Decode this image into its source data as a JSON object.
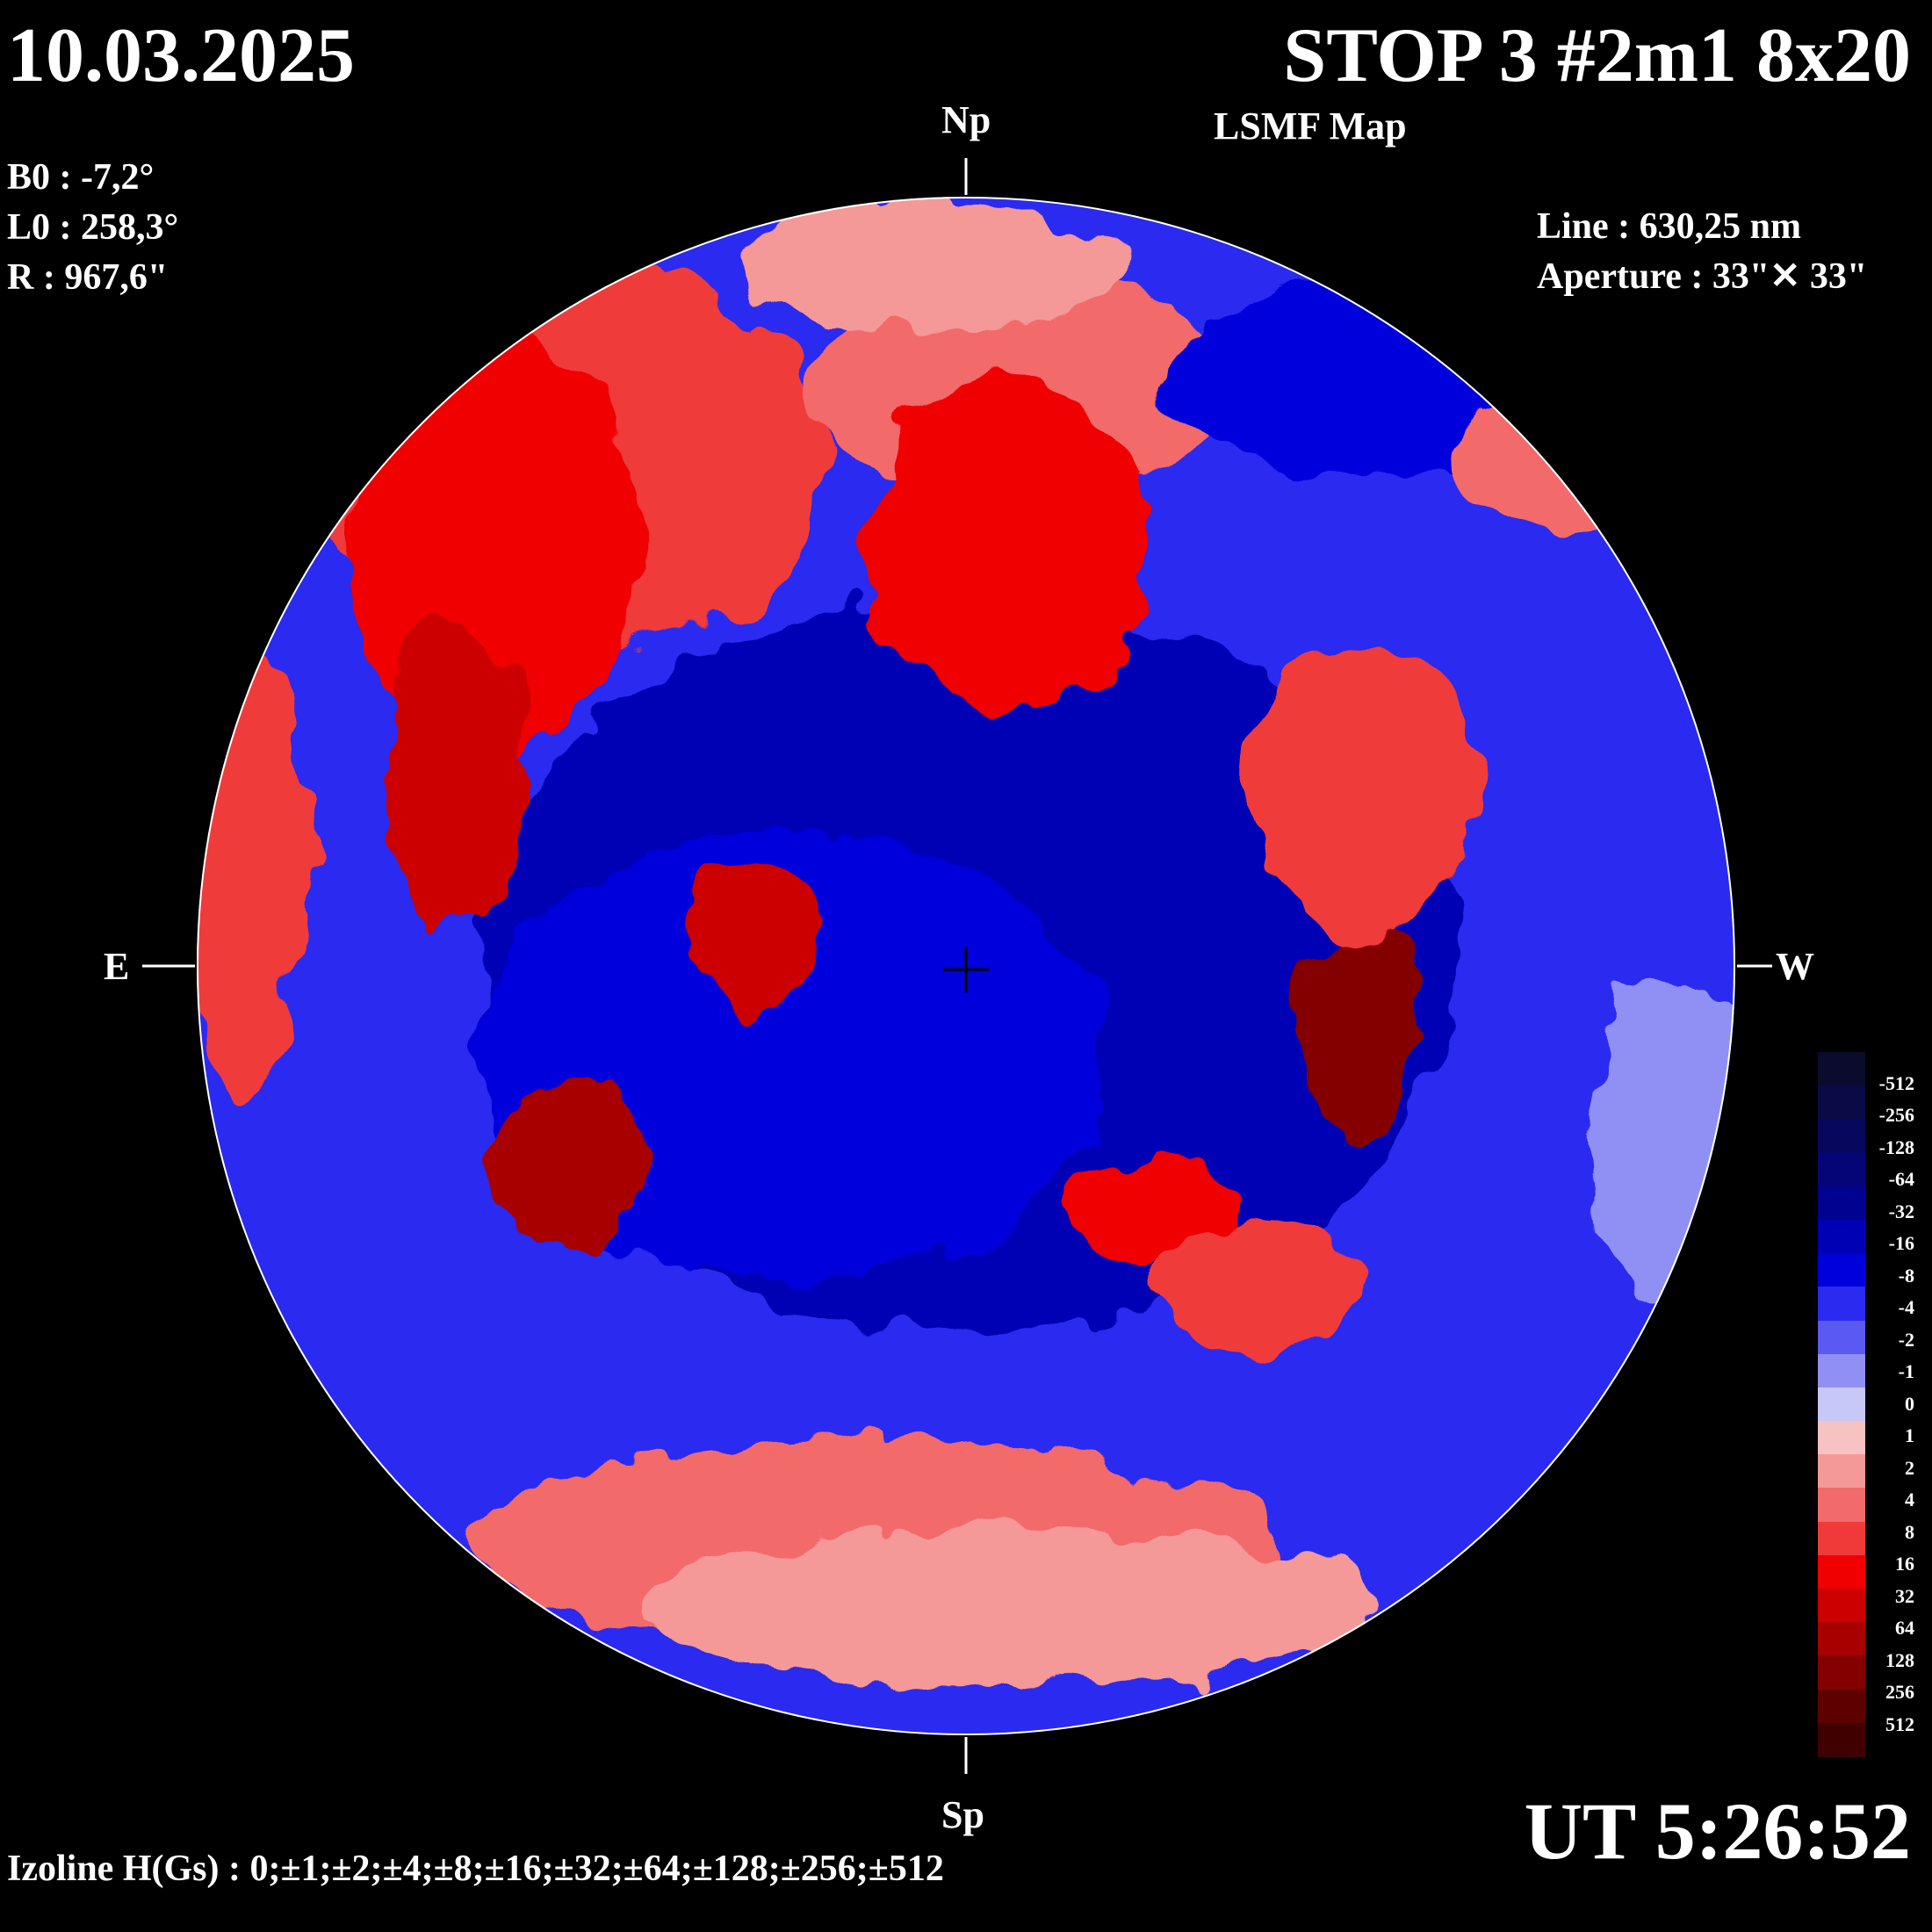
{
  "header": {
    "date": "10.03.2025",
    "title": "STOP 3 #2m1 8x20",
    "subtitle": "LSMF  Map"
  },
  "params": {
    "b0": "B0 : -7,2°",
    "l0": "L0 : 258,3°",
    "r": "R  : 967,6\""
  },
  "instrument": {
    "line": "Line :  630,25 nm",
    "aperture": "Aperture : 33\"✕ 33\""
  },
  "directions": {
    "north": "Np",
    "south": "Sp",
    "east": "E",
    "west": "W"
  },
  "time": "UT 5:26:52",
  "izoline": "Izoline H(Gs) : 0;±1;±2;±4;±8;±16;±32;±64;±128;±256;±512",
  "legend": {
    "labels": [
      "-512",
      "-256",
      "-128",
      "-64",
      "-32",
      "-16",
      "-8",
      "-4",
      "-2",
      "-1",
      "0",
      "1",
      "2",
      "4",
      "8",
      "16",
      "32",
      "64",
      "128",
      "256",
      "512"
    ],
    "colors": [
      "#0b0b2e",
      "#0a0a46",
      "#07075e",
      "#050578",
      "#020290",
      "#0000b4",
      "#0000dc",
      "#2a2af0",
      "#5a5af2",
      "#9090f4",
      "#c8c8f6",
      "#f7c2c2",
      "#f59898",
      "#f26a6a",
      "#f03a3a",
      "#f00000",
      "#cc0000",
      "#a80000",
      "#840000",
      "#5e0000",
      "#400000"
    ]
  }
}
